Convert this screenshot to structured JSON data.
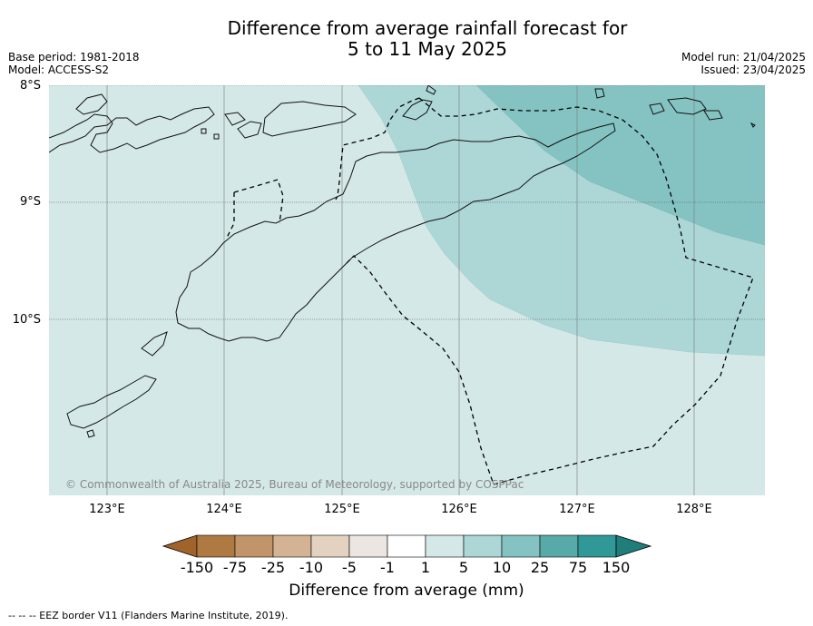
{
  "header": {
    "title_line1": "Difference from average rainfall forecast for",
    "title_line2": "5 to 11 May 2025",
    "base_period": "Base period: 1981-2018",
    "model": "Model: ACCESS-S2",
    "model_run": "Model run: 21/04/2025",
    "issued": "Issued: 23/04/2025"
  },
  "map": {
    "lat_labels": [
      "8°S",
      "9°S",
      "10°S"
    ],
    "lon_labels": [
      "123°E",
      "124°E",
      "125°E",
      "126°E",
      "127°E",
      "128°E"
    ],
    "copyright": "© Commonwealth of Australia 2025, Bureau of Meteorology, supported by COSPPac",
    "zones": [
      {
        "category": "1 to 5",
        "color": "#d4e8e7"
      },
      {
        "category": "5 to 10",
        "color": "#add6d6"
      },
      {
        "category": "10 to 25",
        "color": "#85c3c2"
      }
    ]
  },
  "legend": {
    "title": "Difference from average (mm)",
    "ticks": [
      "-150",
      "-75",
      "-25",
      "-10",
      "-5",
      "-1",
      "1",
      "5",
      "10",
      "25",
      "75",
      "150"
    ],
    "colors": [
      "#a0632c",
      "#ae7a42",
      "#c1946a",
      "#d3b393",
      "#e4d2c0",
      "#ebe6e1",
      "#ffffff",
      "#d4e8e7",
      "#add6d6",
      "#85c3c2",
      "#57aaa8",
      "#309896",
      "#1f7d7a"
    ]
  },
  "footnote": "--  --  -- EEZ border V11 (Flanders Marine Institute, 2019)."
}
